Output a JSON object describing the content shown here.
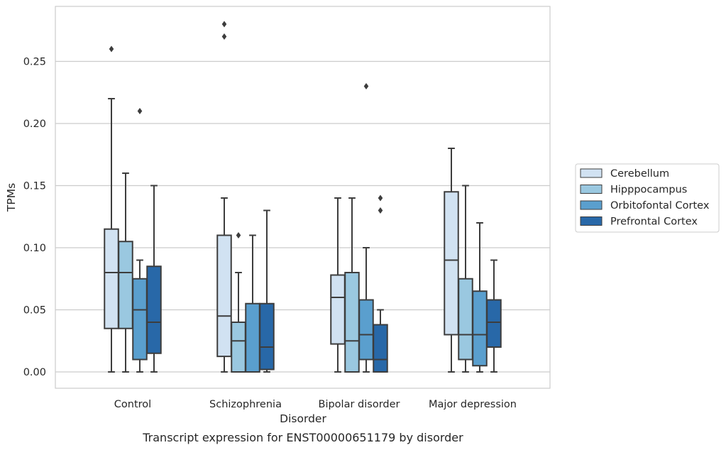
{
  "caption": "Transcript expression for ENST00000651179 by disorder",
  "chart_data": {
    "type": "boxplot",
    "title": "",
    "xlabel": "Disorder",
    "ylabel": "TPMs",
    "ylim": [
      -0.0135,
      0.29
    ],
    "yticks": [
      "0.00",
      "0.05",
      "0.10",
      "0.15",
      "0.20",
      "0.25"
    ],
    "ytick_values": [
      0.0,
      0.05,
      0.1,
      0.15,
      0.2,
      0.25
    ],
    "grid": "horizontal",
    "legend_position": "right",
    "categories": [
      "Control",
      "Schizophrenia",
      "Bipolar disorder",
      "Major depression"
    ],
    "series": [
      {
        "name": "Cerebellum",
        "color": "#d1e2f2",
        "boxes": [
          {
            "whislo": 0.0,
            "q1": 0.035,
            "med": 0.08,
            "q3": 0.115,
            "whishi": 0.22,
            "fliers": [
              0.26
            ]
          },
          {
            "whislo": 0.0,
            "q1": 0.0125,
            "med": 0.045,
            "q3": 0.11,
            "whishi": 0.14,
            "fliers": [
              0.27,
              0.28
            ]
          },
          {
            "whislo": 0.0,
            "q1": 0.0225,
            "med": 0.06,
            "q3": 0.078,
            "whishi": 0.14,
            "fliers": []
          },
          {
            "whislo": 0.0,
            "q1": 0.03,
            "med": 0.09,
            "q3": 0.145,
            "whishi": 0.18,
            "fliers": []
          }
        ]
      },
      {
        "name": "Hipppocampus",
        "color": "#9ac8e0",
        "boxes": [
          {
            "whislo": 0.0,
            "q1": 0.035,
            "med": 0.08,
            "q3": 0.105,
            "whishi": 0.16,
            "fliers": []
          },
          {
            "whislo": 0.0,
            "q1": 0.0,
            "med": 0.025,
            "q3": 0.04,
            "whishi": 0.08,
            "fliers": [
              0.11
            ]
          },
          {
            "whislo": 0.0,
            "q1": 0.0,
            "med": 0.025,
            "q3": 0.08,
            "whishi": 0.14,
            "fliers": []
          },
          {
            "whislo": 0.0,
            "q1": 0.01,
            "med": 0.03,
            "q3": 0.075,
            "whishi": 0.15,
            "fliers": []
          }
        ]
      },
      {
        "name": "Orbitofontal Cortex",
        "color": "#5a9fce",
        "boxes": [
          {
            "whislo": 0.0,
            "q1": 0.01,
            "med": 0.05,
            "q3": 0.075,
            "whishi": 0.09,
            "fliers": [
              0.21
            ]
          },
          {
            "whislo": 0.0,
            "q1": 0.0,
            "med": 0.0,
            "q3": 0.055,
            "whishi": 0.11,
            "fliers": []
          },
          {
            "whislo": 0.0,
            "q1": 0.01,
            "med": 0.03,
            "q3": 0.058,
            "whishi": 0.1,
            "fliers": [
              0.23
            ]
          },
          {
            "whislo": 0.0,
            "q1": 0.005,
            "med": 0.03,
            "q3": 0.065,
            "whishi": 0.12,
            "fliers": []
          }
        ]
      },
      {
        "name": "Prefrontal Cortex",
        "color": "#2868a8",
        "boxes": [
          {
            "whislo": 0.0,
            "q1": 0.015,
            "med": 0.04,
            "q3": 0.085,
            "whishi": 0.15,
            "fliers": []
          },
          {
            "whislo": 0.0,
            "q1": 0.002,
            "med": 0.02,
            "q3": 0.055,
            "whishi": 0.13,
            "fliers": []
          },
          {
            "whislo": 0.0,
            "q1": 0.0,
            "med": 0.01,
            "q3": 0.038,
            "whishi": 0.05,
            "fliers": [
              0.13,
              0.14
            ]
          },
          {
            "whislo": 0.0,
            "q1": 0.02,
            "med": 0.04,
            "q3": 0.058,
            "whishi": 0.09,
            "fliers": []
          }
        ]
      }
    ]
  }
}
